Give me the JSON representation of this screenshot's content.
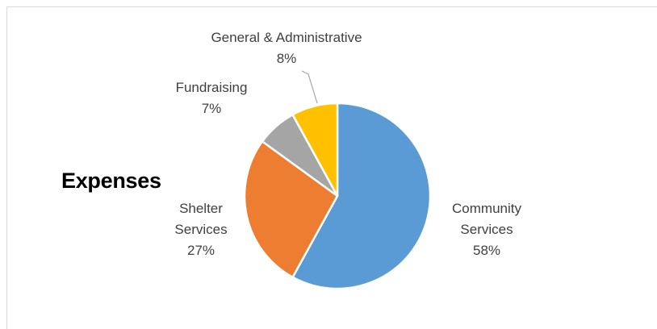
{
  "chart_data": {
    "type": "pie",
    "title": "Expenses",
    "categories": [
      "Community Services",
      "Shelter Services",
      "Fundraising",
      "General & Administrative"
    ],
    "values": [
      58,
      27,
      7,
      8
    ],
    "labels": [
      {
        "name_lines": [
          "Community",
          "Services"
        ],
        "percent": "58%"
      },
      {
        "name_lines": [
          "Shelter",
          "Services"
        ],
        "percent": "27%"
      },
      {
        "name_lines": [
          "Fundraising"
        ],
        "percent": "7%"
      },
      {
        "name_lines": [
          "General & Administrative"
        ],
        "percent": "8%"
      }
    ],
    "colors": [
      "#5b9bd5",
      "#ed7d31",
      "#a5a5a5",
      "#ffc000"
    ],
    "legend": "none",
    "grid": false
  }
}
